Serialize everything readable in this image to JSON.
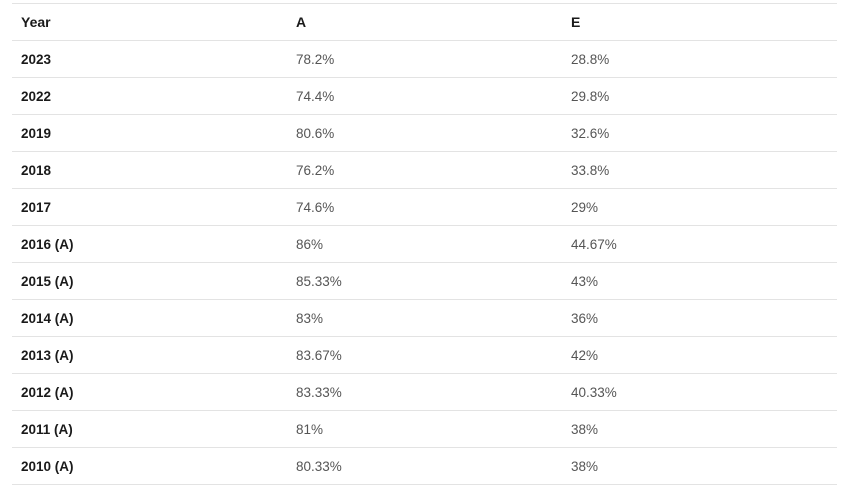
{
  "table": {
    "headers": [
      "Year",
      "A",
      "E"
    ],
    "rows": [
      {
        "year": "2023",
        "a": "78.2%",
        "e": "28.8%"
      },
      {
        "year": "2022",
        "a": "74.4%",
        "e": "29.8%"
      },
      {
        "year": "2019",
        "a": "80.6%",
        "e": "32.6%"
      },
      {
        "year": "2018",
        "a": "76.2%",
        "e": "33.8%"
      },
      {
        "year": "2017",
        "a": "74.6%",
        "e": "29%"
      },
      {
        "year": "2016 (A)",
        "a": "86%",
        "e": "44.67%"
      },
      {
        "year": "2015 (A)",
        "a": "85.33%",
        "e": "43%"
      },
      {
        "year": "2014 (A)",
        "a": "83%",
        "e": "36%"
      },
      {
        "year": "2013 (A)",
        "a": "83.67%",
        "e": "42%"
      },
      {
        "year": "2012 (A)",
        "a": "83.33%",
        "e": "40.33%"
      },
      {
        "year": "2011 (A)",
        "a": "81%",
        "e": "38%"
      },
      {
        "year": "2010 (A)",
        "a": "80.33%",
        "e": "38%"
      }
    ]
  }
}
